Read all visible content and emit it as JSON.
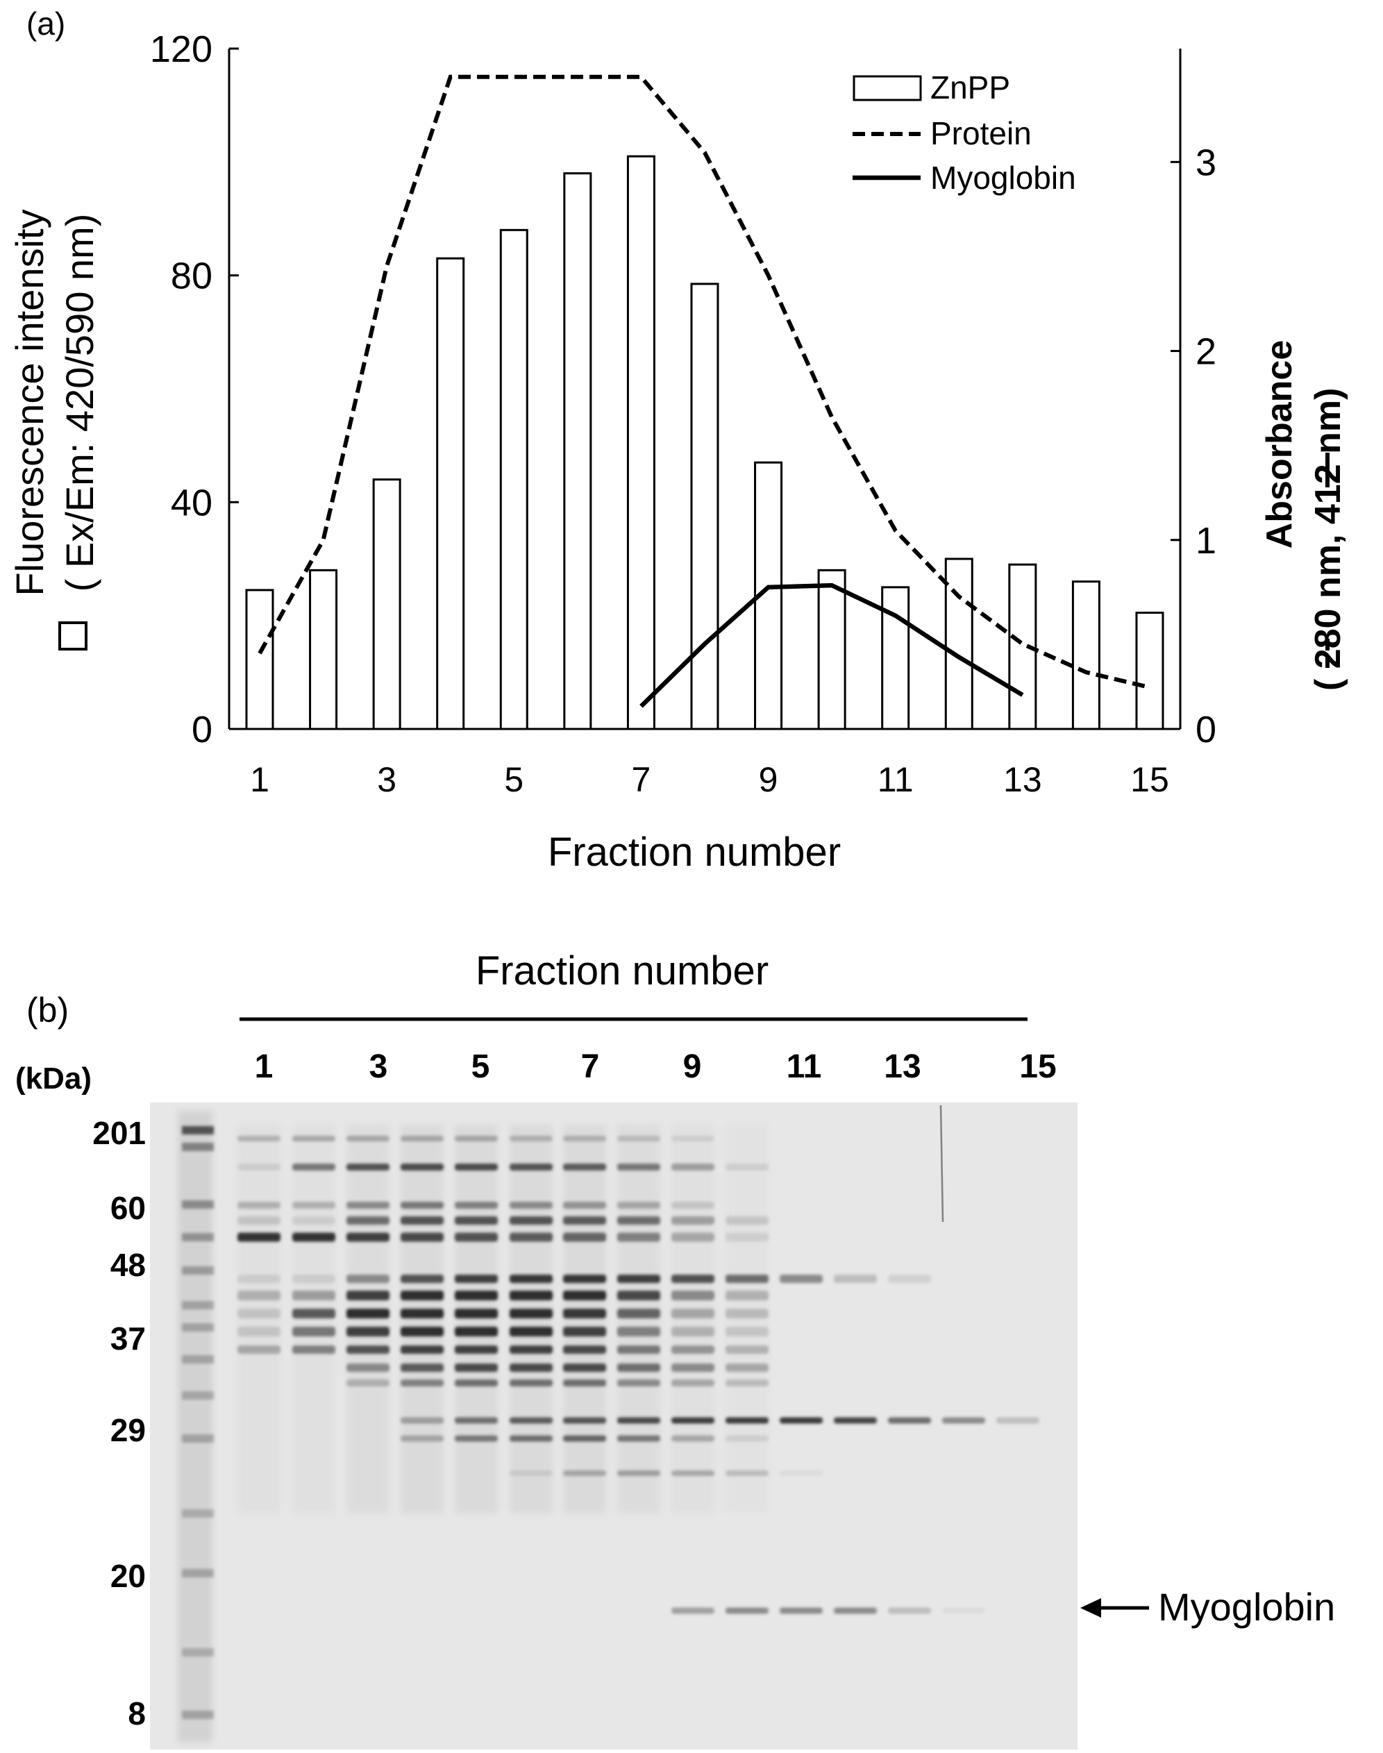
{
  "panel_a": {
    "label": "(a)",
    "chart_data": {
      "type": "bar",
      "x": [
        1,
        2,
        3,
        4,
        5,
        6,
        7,
        8,
        9,
        10,
        11,
        12,
        13,
        14,
        15
      ],
      "xticks": [
        "1",
        "3",
        "5",
        "7",
        "9",
        "11",
        "13",
        "15"
      ],
      "xlabel": "Fraction number",
      "ylabel_line1": "Fluorescence intensity",
      "ylabel_line2": "Ex/Em: 420/590 nm)",
      "ylabel_open": "(",
      "ylim": [
        0,
        120
      ],
      "yticks": [
        "0",
        "40",
        "80",
        "120"
      ],
      "y2label_line1": "Absorbance",
      "y2label_line2": "280 nm,",
      "y2label_line3": "412 nm)",
      "y2label_open": "(",
      "y2lim": [
        0,
        3.6
      ],
      "y2ticks": [
        "0",
        "1",
        "2",
        "3"
      ],
      "legend_position": "top-right",
      "series": [
        {
          "name": "ZnPP",
          "kind": "bar",
          "axis": "left",
          "x": [
            1,
            2,
            3,
            4,
            5,
            6,
            7,
            8,
            9,
            10,
            11,
            12,
            13,
            14,
            15
          ],
          "values": [
            24.5,
            28,
            44,
            83,
            88,
            98,
            101,
            78.5,
            47,
            28,
            25,
            30,
            29,
            26,
            20.5
          ]
        },
        {
          "name": "Protein",
          "kind": "dashed-line",
          "axis": "right",
          "x": [
            1,
            2,
            3,
            4,
            5,
            6,
            7,
            8,
            9,
            10,
            11,
            12,
            13,
            14,
            15
          ],
          "values": [
            0.4,
            1.0,
            2.45,
            3.45,
            3.45,
            3.45,
            3.45,
            3.05,
            2.4,
            1.65,
            1.05,
            0.7,
            0.45,
            0.3,
            0.22
          ]
        },
        {
          "name": "Myoglobin",
          "kind": "solid-line",
          "axis": "right",
          "x": [
            7,
            8,
            9,
            10,
            11,
            12,
            13
          ],
          "values": [
            0.12,
            0.45,
            0.75,
            0.76,
            0.6,
            0.38,
            0.18
          ]
        }
      ]
    }
  },
  "panel_b": {
    "label": "(b)",
    "header": "Fraction number",
    "kda_label": "(kDa)",
    "lane_labels": [
      "1",
      "3",
      "5",
      "7",
      "9",
      "11",
      "13",
      "15"
    ],
    "markers": [
      "201",
      "60",
      "48",
      "37",
      "29",
      "20",
      "8"
    ],
    "myoglobin_label": "Myoglobin"
  }
}
